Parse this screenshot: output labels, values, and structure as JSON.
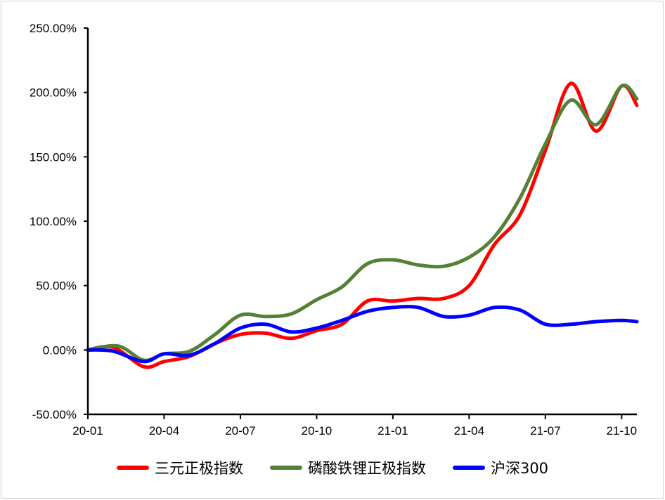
{
  "chart_data": {
    "type": "line",
    "title": "",
    "xlabel": "",
    "ylabel": "",
    "ylim": [
      -0.5,
      2.5
    ],
    "xlim": [
      0,
      21.6
    ],
    "y_ticks": [
      {
        "value": 2.5,
        "label": "250.00%"
      },
      {
        "value": 2.0,
        "label": "200.00%"
      },
      {
        "value": 1.5,
        "label": "150.00%"
      },
      {
        "value": 1.0,
        "label": "100.00%"
      },
      {
        "value": 0.5,
        "label": "50.00%"
      },
      {
        "value": 0.0,
        "label": "0.00%"
      },
      {
        "value": -0.5,
        "label": "-50.00%"
      }
    ],
    "x_ticks": [
      {
        "value": 0,
        "label": "20-01"
      },
      {
        "value": 3,
        "label": "20-04"
      },
      {
        "value": 6,
        "label": "20-07"
      },
      {
        "value": 9,
        "label": "20-10"
      },
      {
        "value": 12,
        "label": "21-01"
      },
      {
        "value": 15,
        "label": "21-04"
      },
      {
        "value": 18,
        "label": "21-07"
      },
      {
        "value": 21,
        "label": "21-10"
      }
    ],
    "grid": false,
    "legend_position": "bottom",
    "series": [
      {
        "name": "三元正极指数",
        "color": "#ff0000",
        "points": [
          [
            0,
            0.0
          ],
          [
            1.0,
            0.02
          ],
          [
            2.2,
            -0.13
          ],
          [
            3.0,
            -0.09
          ],
          [
            4.0,
            -0.05
          ],
          [
            5.0,
            0.05
          ],
          [
            6.0,
            0.12
          ],
          [
            7.0,
            0.13
          ],
          [
            8.0,
            0.09
          ],
          [
            9.0,
            0.15
          ],
          [
            10.0,
            0.2
          ],
          [
            11.0,
            0.38
          ],
          [
            12.0,
            0.38
          ],
          [
            13.0,
            0.4
          ],
          [
            14.0,
            0.4
          ],
          [
            15.0,
            0.5
          ],
          [
            16.0,
            0.82
          ],
          [
            17.0,
            1.05
          ],
          [
            18.0,
            1.55
          ],
          [
            19.0,
            2.07
          ],
          [
            20.0,
            1.7
          ],
          [
            21.0,
            2.05
          ],
          [
            21.6,
            1.9
          ]
        ]
      },
      {
        "name": "磷酸铁锂正极指数",
        "color": "#538135",
        "points": [
          [
            0,
            0.0
          ],
          [
            1.2,
            0.03
          ],
          [
            2.2,
            -0.08
          ],
          [
            3.0,
            -0.03
          ],
          [
            4.0,
            -0.01
          ],
          [
            5.0,
            0.12
          ],
          [
            6.0,
            0.27
          ],
          [
            7.0,
            0.26
          ],
          [
            8.0,
            0.28
          ],
          [
            9.0,
            0.39
          ],
          [
            10.0,
            0.49
          ],
          [
            11.0,
            0.67
          ],
          [
            12.0,
            0.7
          ],
          [
            13.0,
            0.66
          ],
          [
            14.0,
            0.65
          ],
          [
            15.0,
            0.72
          ],
          [
            16.0,
            0.88
          ],
          [
            17.0,
            1.18
          ],
          [
            18.0,
            1.6
          ],
          [
            19.0,
            1.94
          ],
          [
            20.0,
            1.75
          ],
          [
            21.0,
            2.05
          ],
          [
            21.6,
            1.95
          ]
        ]
      },
      {
        "name": "沪深300",
        "color": "#0000ff",
        "points": [
          [
            0,
            0.0
          ],
          [
            1.0,
            -0.01
          ],
          [
            2.2,
            -0.09
          ],
          [
            3.0,
            -0.03
          ],
          [
            4.0,
            -0.04
          ],
          [
            5.0,
            0.05
          ],
          [
            6.0,
            0.17
          ],
          [
            7.0,
            0.2
          ],
          [
            8.0,
            0.14
          ],
          [
            9.0,
            0.17
          ],
          [
            10.0,
            0.23
          ],
          [
            11.0,
            0.3
          ],
          [
            12.0,
            0.33
          ],
          [
            13.0,
            0.33
          ],
          [
            14.0,
            0.26
          ],
          [
            15.0,
            0.27
          ],
          [
            16.0,
            0.33
          ],
          [
            17.0,
            0.31
          ],
          [
            18.0,
            0.2
          ],
          [
            19.0,
            0.2
          ],
          [
            20.0,
            0.22
          ],
          [
            21.0,
            0.23
          ],
          [
            21.6,
            0.22
          ]
        ]
      }
    ]
  }
}
